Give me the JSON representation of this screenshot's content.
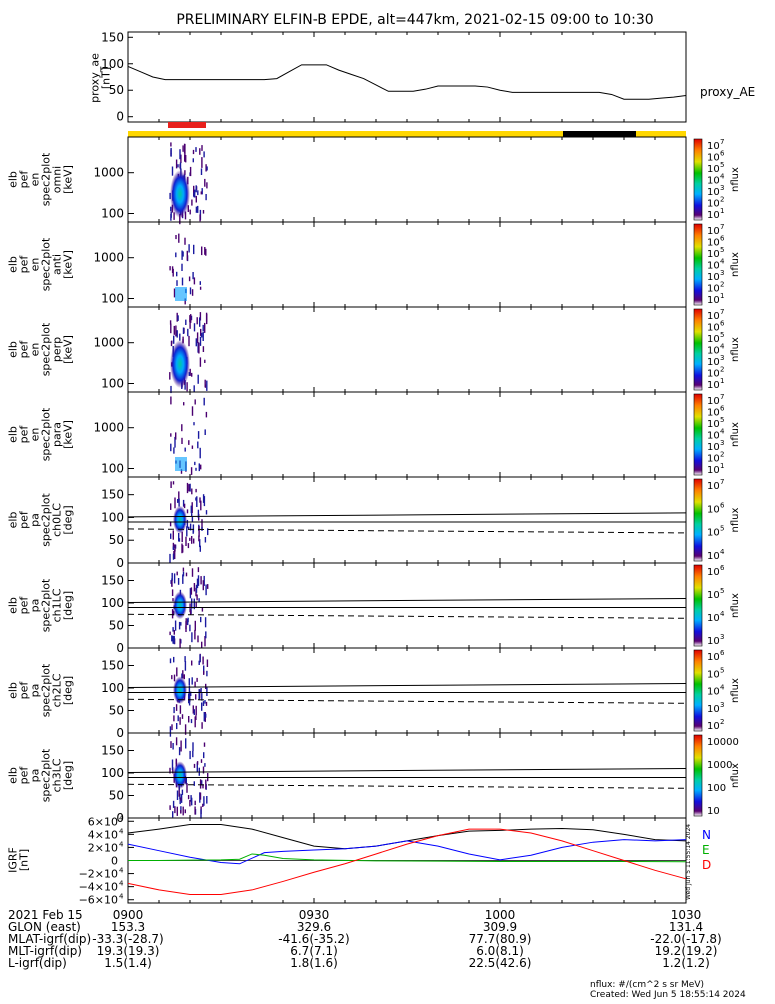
{
  "title": "PRELIMINARY ELFIN-B EPDE, alt=447km, 2021-02-15 09:00 to 10:30",
  "colors": {
    "sci_zone": "#e8201c",
    "day": "#ffd700",
    "night": "#000000",
    "igrf_N": "#0000ff",
    "igrf_E": "#00b000",
    "igrf_D": "#ff0000"
  },
  "chart_data": [
    {
      "type": "line",
      "panel": "proxy_ae",
      "ylabel": [
        "proxy_ae",
        "[nT]"
      ],
      "yticks": [
        "150",
        "100",
        "50",
        "0"
      ],
      "ylim": [
        -10,
        160
      ],
      "legend": "proxy_AE",
      "series": [
        {
          "name": "proxy_AE",
          "x": [
            0,
            2,
            4,
            6,
            8,
            10,
            12,
            14,
            16,
            18,
            20,
            22,
            24,
            26,
            28,
            30,
            32,
            34,
            36,
            38,
            40,
            42,
            44,
            46,
            48,
            50,
            52,
            54,
            56,
            58,
            60,
            62,
            64,
            66,
            68,
            70,
            72,
            74,
            76,
            78,
            80,
            82,
            84,
            86,
            88,
            90
          ],
          "values": [
            95,
            85,
            75,
            70,
            70,
            70,
            70,
            70,
            70,
            70,
            70,
            70,
            72,
            85,
            98,
            98,
            98,
            88,
            80,
            72,
            60,
            48,
            48,
            48,
            52,
            58,
            58,
            58,
            58,
            56,
            50,
            46,
            46,
            46,
            46,
            46,
            46,
            46,
            46,
            42,
            33,
            33,
            33,
            35,
            37,
            40
          ]
        }
      ]
    },
    {
      "type": "heatmap",
      "panel": "energy_spectrograms",
      "ylabels": [
        [
          "elb",
          "pef",
          "en",
          "spec2plot",
          "omni",
          "[keV]"
        ],
        [
          "elb",
          "pef",
          "en",
          "spec2plot",
          "anti",
          "[keV]"
        ],
        [
          "elb",
          "pef",
          "en",
          "spec2plot",
          "perp",
          "[keV]"
        ],
        [
          "elb",
          "pef",
          "en",
          "spec2plot",
          "para",
          "[keV]"
        ]
      ],
      "yticks": [
        "1000",
        "100"
      ],
      "y_scale": "log",
      "x_active_range": [
        9.0,
        15.0
      ],
      "colorbar": {
        "label": "nflux",
        "ticks": [
          "10",
          "10",
          "10",
          "10",
          "10",
          "10",
          "10"
        ],
        "exponents": [
          "7",
          "6",
          "5",
          "4",
          "3",
          "2",
          "1"
        ]
      }
    },
    {
      "type": "heatmap",
      "panel": "pitch_angle_spectrograms",
      "ylabels": [
        [
          "elb",
          "pef",
          "pa",
          "spec2plot",
          "ch0LC",
          "[deg]"
        ],
        [
          "elb",
          "pef",
          "pa",
          "spec2plot",
          "ch1LC",
          "[deg]"
        ],
        [
          "elb",
          "pef",
          "pa",
          "spec2plot",
          "ch2LC",
          "[deg]"
        ],
        [
          "elb",
          "pef",
          "pa",
          "spec2plot",
          "ch3LC",
          "[deg]"
        ]
      ],
      "yticks": [
        "150",
        "100",
        "50",
        "0"
      ],
      "ylim": [
        0,
        180
      ],
      "loss_cone_lines_deg": [
        110,
        90,
        66
      ],
      "colorbars": [
        {
          "label": "nflux",
          "ticks": [
            "10",
            "10",
            "10",
            "10"
          ],
          "exponents": [
            "7",
            "6",
            "5",
            "4"
          ]
        },
        {
          "label": "nflux",
          "ticks": [
            "10",
            "10",
            "10",
            "10"
          ],
          "exponents": [
            "6",
            "5",
            "4",
            "3"
          ]
        },
        {
          "label": "nflux",
          "ticks": [
            "10",
            "10",
            "10",
            "10",
            "10"
          ],
          "exponents": [
            "6",
            "5",
            "4",
            "3",
            "2"
          ]
        },
        {
          "label": "nflux",
          "ticks": [
            "10000",
            "1000",
            "100",
            "10"
          ],
          "exponents": []
        }
      ]
    },
    {
      "type": "line",
      "panel": "igrf",
      "ylabel": [
        "IGRF",
        "[nT]"
      ],
      "yticks": [
        "6×10",
        "4×10",
        "2×10",
        "0",
        "−2×10",
        "−4×10",
        "−6×10"
      ],
      "yticks_exp": "4",
      "ylim": [
        -65000,
        65000
      ],
      "legend": [
        "N",
        "E",
        "D"
      ],
      "series": [
        {
          "name": "total",
          "x": [
            0,
            5,
            10,
            15,
            20,
            25,
            30,
            35,
            40,
            45,
            50,
            55,
            60,
            65,
            70,
            75,
            80,
            85,
            90
          ],
          "values": [
            42000,
            48000,
            55000,
            55000,
            48000,
            35000,
            22000,
            18000,
            22000,
            30000,
            38000,
            45000,
            46000,
            48000,
            49000,
            47000,
            40000,
            32000,
            30000
          ]
        },
        {
          "name": "N",
          "x": [
            0,
            5,
            10,
            15,
            18,
            22,
            25,
            30,
            35,
            40,
            45,
            50,
            55,
            60,
            65,
            70,
            75,
            80,
            85,
            90
          ],
          "values": [
            25000,
            15000,
            5000,
            -3000,
            -5000,
            12000,
            14000,
            16000,
            18000,
            22000,
            30000,
            22000,
            10000,
            1000,
            8000,
            20000,
            28000,
            32000,
            30000,
            32000
          ]
        },
        {
          "name": "E",
          "x": [
            0,
            5,
            10,
            15,
            18,
            20,
            22,
            25,
            30,
            40,
            50,
            60,
            70,
            80,
            90
          ],
          "values": [
            0,
            0,
            500,
            1000,
            2000,
            10000,
            8000,
            3000,
            1000,
            -500,
            -1000,
            -1500,
            -1500,
            -1500,
            -2000
          ]
        },
        {
          "name": "D",
          "x": [
            0,
            5,
            10,
            15,
            20,
            25,
            30,
            35,
            40,
            45,
            50,
            55,
            60,
            65,
            70,
            75,
            80,
            85,
            90
          ],
          "values": [
            -35000,
            -45000,
            -52000,
            -52000,
            -45000,
            -32000,
            -18000,
            -5000,
            10000,
            25000,
            38000,
            48000,
            48000,
            42000,
            30000,
            15000,
            0,
            -15000,
            -28000
          ]
        }
      ]
    }
  ],
  "xaxis": {
    "ticks": [
      "0900",
      "0930",
      "1000",
      "1030"
    ],
    "tick_minutes": [
      0,
      30,
      60,
      90
    ],
    "row_labels": [
      "2021 Feb 15",
      "GLON (east)",
      "MLAT-igrf(dip)",
      "MLT-igrf(dip)",
      "L-igrf(dip)"
    ],
    "rows": [
      [
        "153.3",
        "329.6",
        "309.9",
        "131.4"
      ],
      [
        "-33.3(-28.7)",
        "-41.6(-35.2)",
        "77.7(80.9)",
        "-22.0(-17.8)"
      ],
      [
        "19.3(19.3)",
        "6.7(7.1)",
        "6.0(8.1)",
        "19.2(19.2)"
      ],
      [
        "1.5(1.4)",
        "1.8(1.6)",
        "22.5(42.6)",
        "1.2(1.2)"
      ]
    ]
  },
  "footer": {
    "units": "nflux: #/(cm^2 s sr MeV)",
    "created": "Created: Wed Jun  5 18:55:14 2024",
    "side_stamp": "Wed Jun  5 11:55:14 2024"
  }
}
